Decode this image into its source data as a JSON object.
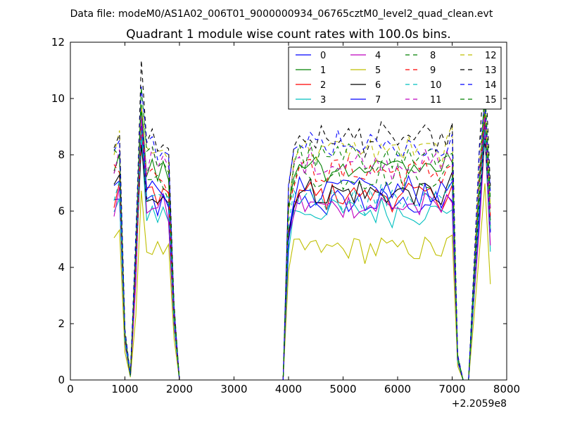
{
  "suptitle": "Data file: modeM0/AS1A02_006T01_9000000934_06765cztM0_level2_quad_clean.evt",
  "chart_data": {
    "type": "line",
    "title": "Quadrant 1 module wise count rates with 100.0s bins.",
    "xlabel": "",
    "ylabel": "",
    "x_offset_label": "+2.2059e8",
    "xlim": [
      0,
      8000
    ],
    "ylim": [
      0,
      12
    ],
    "xticks": [
      "0",
      "1000",
      "2000",
      "3000",
      "4000",
      "5000",
      "6000",
      "7000",
      "8000"
    ],
    "yticks": [
      "0",
      "2",
      "4",
      "6",
      "8",
      "10",
      "12"
    ],
    "legend_position": "top-right",
    "series": [
      {
        "name": "0",
        "color": "#0000ff",
        "dash": "solid",
        "base": 6.6,
        "peak": 9.3
      },
      {
        "name": "1",
        "color": "#008000",
        "dash": "solid",
        "base": 8.0,
        "peak": 9.6
      },
      {
        "name": "2",
        "color": "#ff0000",
        "dash": "solid",
        "base": 6.9,
        "peak": 9.0
      },
      {
        "name": "3",
        "color": "#00bfbf",
        "dash": "solid",
        "base": 6.3,
        "peak": 8.5
      },
      {
        "name": "4",
        "color": "#bf00bf",
        "dash": "solid",
        "base": 6.5,
        "peak": 8.8
      },
      {
        "name": "5",
        "color": "#bfbf00",
        "dash": "solid",
        "base": 4.9,
        "peak": 6.8
      },
      {
        "name": "6",
        "color": "#000000",
        "dash": "solid",
        "base": 7.0,
        "peak": 8.6
      },
      {
        "name": "7",
        "color": "#0000ff",
        "dash": "solid",
        "base": 7.1,
        "peak": 9.0
      },
      {
        "name": "8",
        "color": "#008000",
        "dash": "dashed",
        "base": 7.6,
        "peak": 9.5
      },
      {
        "name": "9",
        "color": "#ff0000",
        "dash": "dashed",
        "base": 7.8,
        "peak": 9.1
      },
      {
        "name": "10",
        "color": "#00bfbf",
        "dash": "dashed",
        "base": 6.8,
        "peak": 8.9
      },
      {
        "name": "11",
        "color": "#bf00bf",
        "dash": "dashed",
        "base": 8.1,
        "peak": 9.4
      },
      {
        "name": "12",
        "color": "#bfbf00",
        "dash": "dashed",
        "base": 8.6,
        "peak": 9.9
      },
      {
        "name": "13",
        "color": "#000000",
        "dash": "dashed",
        "base": 9.0,
        "peak": 11.0
      },
      {
        "name": "14",
        "color": "#0000ff",
        "dash": "dashed",
        "base": 8.7,
        "peak": 10.3
      },
      {
        "name": "15",
        "color": "#008000",
        "dash": "dashed",
        "base": 8.3,
        "peak": 10.0
      }
    ],
    "time_shape": [
      {
        "x": 800,
        "f": 0.95
      },
      {
        "x": 900,
        "f": 1.0
      },
      {
        "x": 1000,
        "f": 0.2
      },
      {
        "x": 1100,
        "f": 0.02
      },
      {
        "x": 1200,
        "f": 0.55
      },
      {
        "x": 1300,
        "f": 1.05
      },
      {
        "x": 1400,
        "f": 0.95
      },
      {
        "x": 1500,
        "f": 0.97
      },
      {
        "x": 1600,
        "f": 0.93
      },
      {
        "x": 1700,
        "f": 0.95
      },
      {
        "x": 1800,
        "f": 0.9
      },
      {
        "x": 1900,
        "f": 0.3
      },
      {
        "x": 2000,
        "f": 0.0
      },
      {
        "x": 3900,
        "f": 0.0
      },
      {
        "x": 4000,
        "f": 0.75
      },
      {
        "x": 4100,
        "f": 0.93
      },
      {
        "x": 4200,
        "f": 0.97
      },
      {
        "x": 4300,
        "f": 0.95
      },
      {
        "x": 4400,
        "f": 0.97
      },
      {
        "x": 4500,
        "f": 0.94
      },
      {
        "x": 4600,
        "f": 0.96
      },
      {
        "x": 4700,
        "f": 0.93
      },
      {
        "x": 4800,
        "f": 0.95
      },
      {
        "x": 4900,
        "f": 0.97
      },
      {
        "x": 5000,
        "f": 0.94
      },
      {
        "x": 5100,
        "f": 0.96
      },
      {
        "x": 5200,
        "f": 0.95
      },
      {
        "x": 5300,
        "f": 0.97
      },
      {
        "x": 5400,
        "f": 0.93
      },
      {
        "x": 5500,
        "f": 0.96
      },
      {
        "x": 5600,
        "f": 0.94
      },
      {
        "x": 5700,
        "f": 0.97
      },
      {
        "x": 5800,
        "f": 0.95
      },
      {
        "x": 5900,
        "f": 0.93
      },
      {
        "x": 6000,
        "f": 0.96
      },
      {
        "x": 6100,
        "f": 0.94
      },
      {
        "x": 6200,
        "f": 0.97
      },
      {
        "x": 6300,
        "f": 0.95
      },
      {
        "x": 6400,
        "f": 0.93
      },
      {
        "x": 6500,
        "f": 0.96
      },
      {
        "x": 6600,
        "f": 0.94
      },
      {
        "x": 6700,
        "f": 0.95
      },
      {
        "x": 6800,
        "f": 0.93
      },
      {
        "x": 6900,
        "f": 0.96
      },
      {
        "x": 7000,
        "f": 1.0
      },
      {
        "x": 7100,
        "f": 0.1
      },
      {
        "x": 7200,
        "f": 0.0
      },
      {
        "x": 7300,
        "f": 0.0
      },
      {
        "x": 7400,
        "f": 0.45
      },
      {
        "x": 7500,
        "f": 0.9
      },
      {
        "x": 7600,
        "f": 1.05
      },
      {
        "x": 7700,
        "f": 0.75
      }
    ]
  }
}
